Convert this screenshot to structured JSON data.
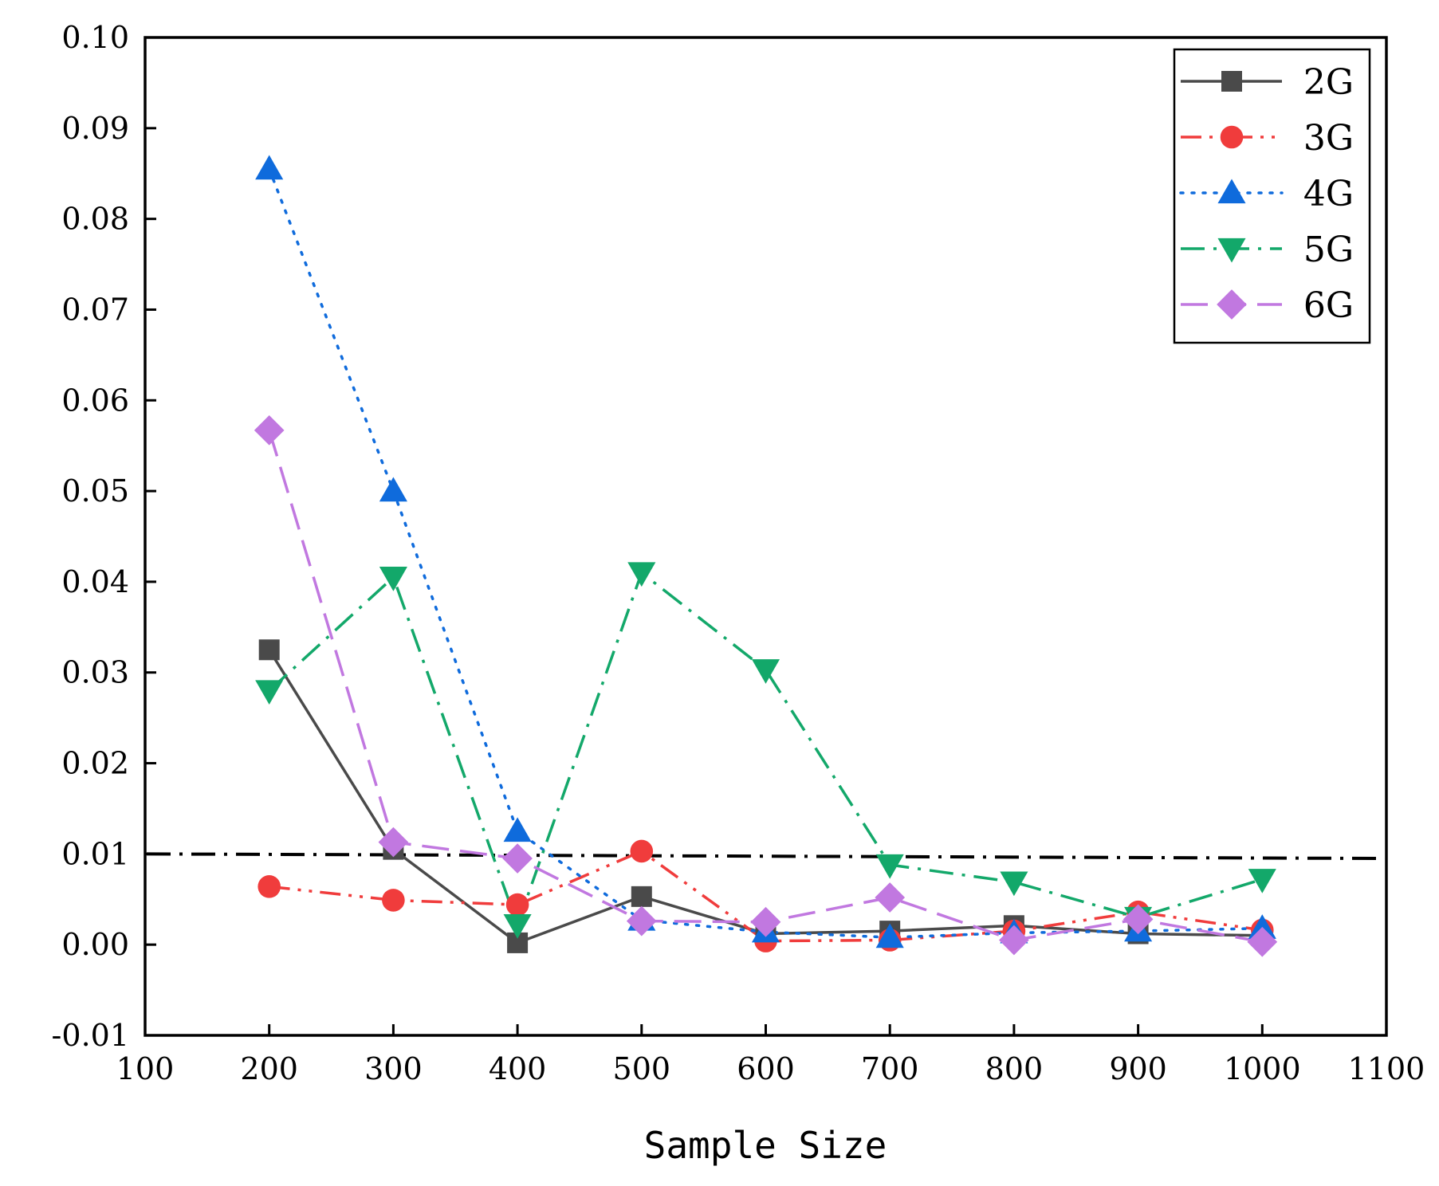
{
  "chart_data": {
    "type": "line",
    "title": "",
    "xlabel": "Sample Size",
    "ylabel": "",
    "xlim": [
      100,
      1100
    ],
    "ylim": [
      -0.01,
      0.1
    ],
    "xticks": [
      100,
      200,
      300,
      400,
      500,
      600,
      700,
      800,
      900,
      1000,
      1100
    ],
    "xtick_labels": [
      "100",
      "200",
      "300",
      "400",
      "500",
      "600",
      "700",
      "800",
      "900",
      "1000",
      "1100"
    ],
    "yticks": [
      -0.01,
      0.0,
      0.01,
      0.02,
      0.03,
      0.04,
      0.05,
      0.06,
      0.07,
      0.08,
      0.09,
      0.1
    ],
    "ytick_labels": [
      "-0.01",
      "0.00",
      "0.01",
      "0.02",
      "0.03",
      "0.04",
      "0.05",
      "0.06",
      "0.07",
      "0.08",
      "0.09",
      "0.10"
    ],
    "grid": false,
    "legend_position": "top-right",
    "x": [
      200,
      300,
      400,
      500,
      600,
      700,
      800,
      900,
      1000
    ],
    "series": [
      {
        "name": "2G",
        "color": "#4a4a4a",
        "dash": "solid",
        "marker": "square",
        "values": [
          0.0325,
          0.0105,
          0.0002,
          0.0053,
          0.0012,
          0.0015,
          0.0021,
          0.0012,
          0.001
        ]
      },
      {
        "name": "3G",
        "color": "#f03c3c",
        "dash": "dash-dot-dot",
        "marker": "circle",
        "values": [
          0.0064,
          0.0049,
          0.0044,
          0.0103,
          0.0004,
          0.0005,
          0.0015,
          0.0036,
          0.0016
        ]
      },
      {
        "name": "4G",
        "color": "#0f6bdc",
        "dash": "dot",
        "marker": "triangle-up",
        "values": [
          0.0855,
          0.05,
          0.0125,
          0.0027,
          0.0014,
          0.0008,
          0.0013,
          0.0015,
          0.0018
        ]
      },
      {
        "name": "5G",
        "color": "#13a86a",
        "dash": "dash-dot",
        "marker": "triangle-down",
        "values": [
          0.028,
          0.0405,
          0.0022,
          0.041,
          0.0303,
          0.0088,
          0.0069,
          0.003,
          0.0072
        ]
      },
      {
        "name": "6G",
        "color": "#c178e0",
        "dash": "dash",
        "marker": "diamond",
        "values": [
          0.0567,
          0.0113,
          0.0095,
          0.0026,
          0.0025,
          0.0052,
          0.0005,
          0.0028,
          0.0003
        ]
      }
    ],
    "reference_line": {
      "y_start": 0.01,
      "y_end": 0.0095,
      "color": "#000000",
      "dash": "dash-dot"
    }
  }
}
